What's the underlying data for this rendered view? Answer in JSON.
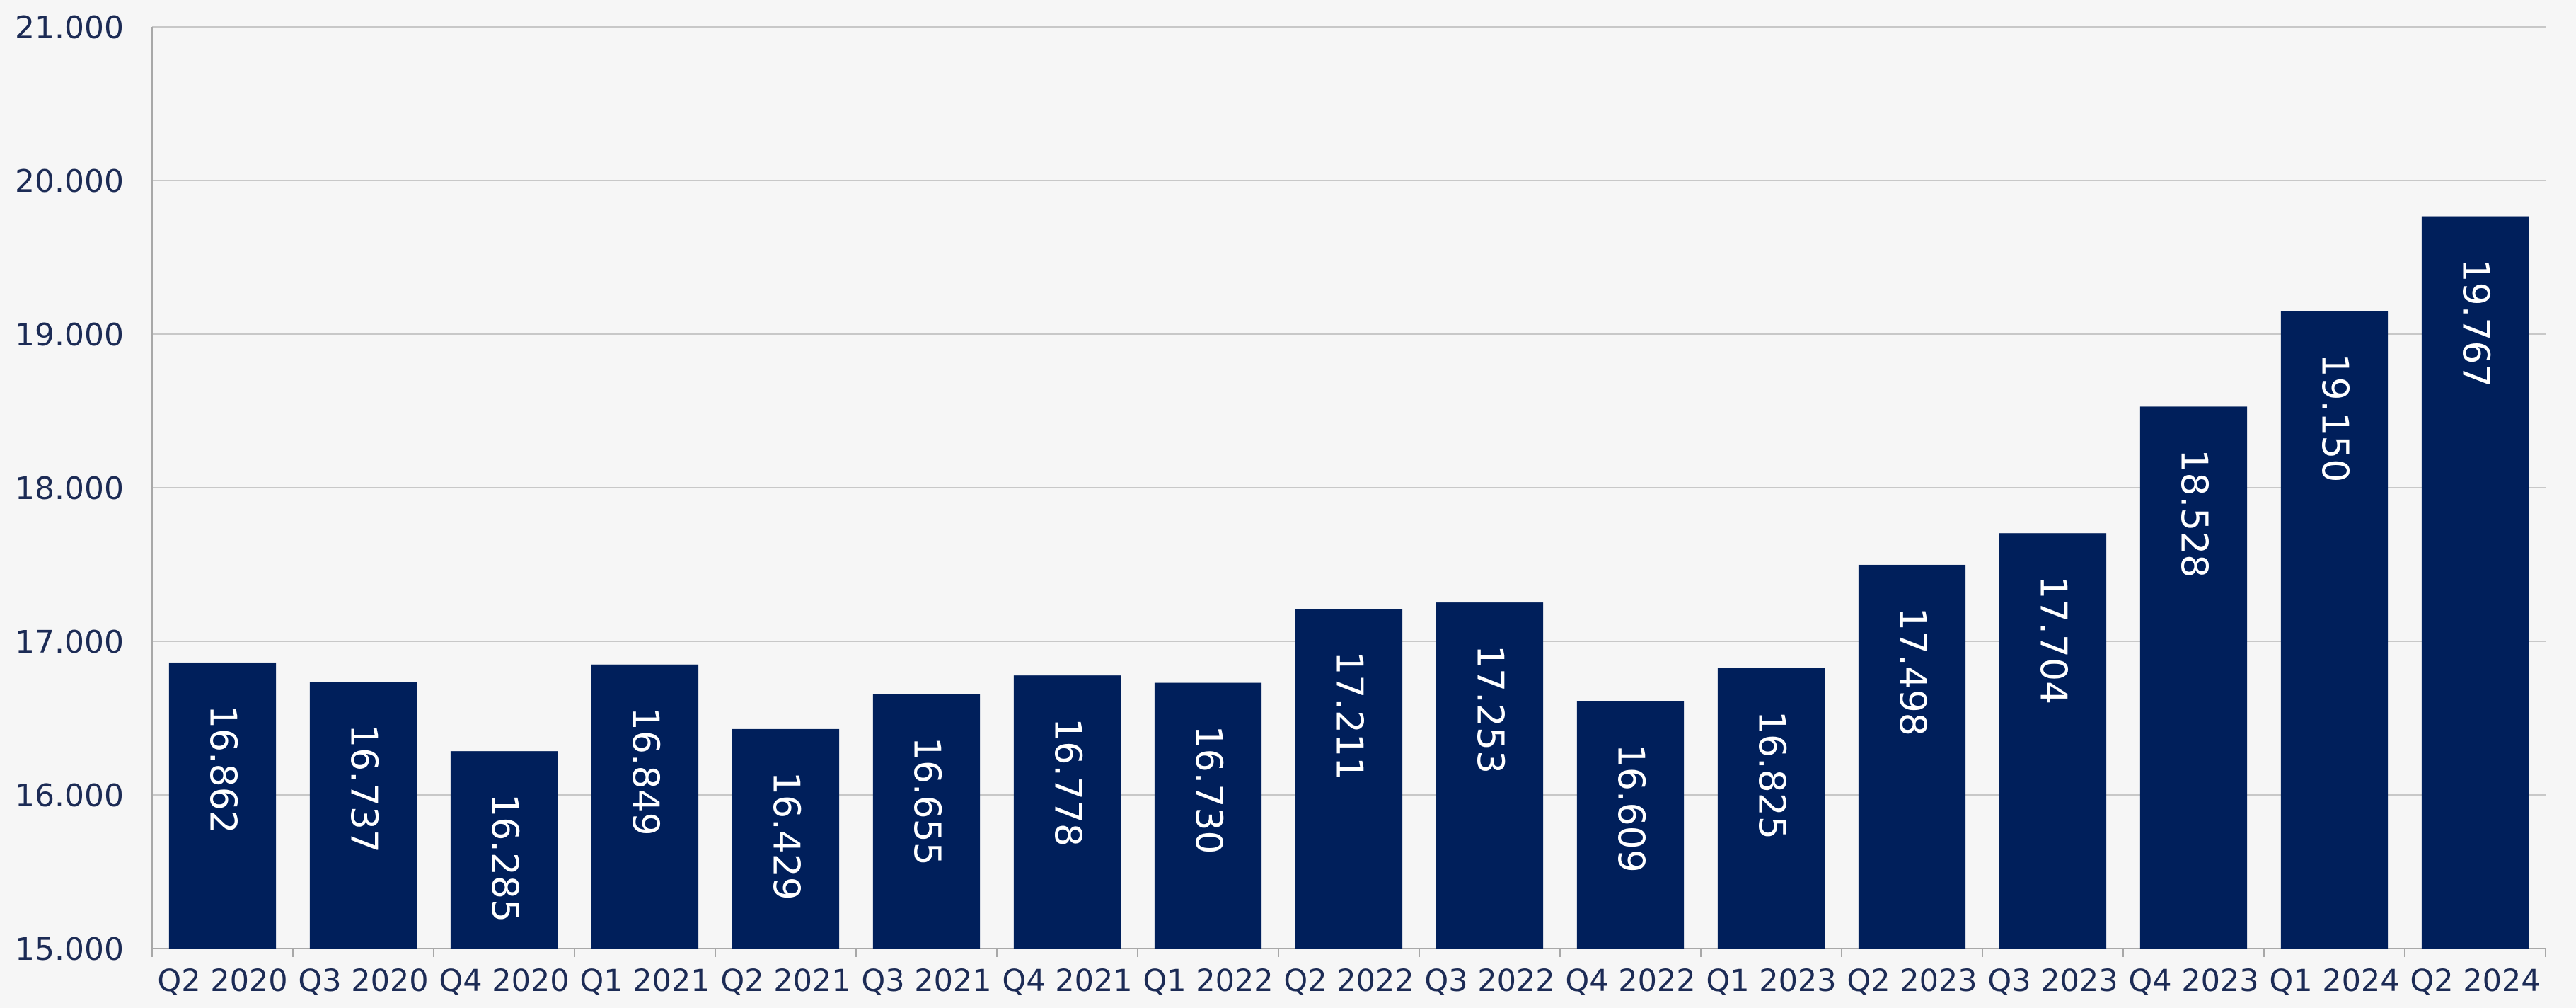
{
  "chart_data": {
    "type": "bar",
    "title": "",
    "xlabel": "",
    "ylabel": "",
    "ylim": [
      15000,
      21000
    ],
    "yticks": [
      15000,
      16000,
      17000,
      18000,
      19000,
      20000,
      21000
    ],
    "ytick_labels": [
      "15.000",
      "16.000",
      "17.000",
      "18.000",
      "19.000",
      "20.000",
      "21.000"
    ],
    "grid": true,
    "legend": "none",
    "categories": [
      "Q2 2020",
      "Q3 2020",
      "Q4 2020",
      "Q1 2021",
      "Q2 2021",
      "Q3 2021",
      "Q4 2021",
      "Q1 2022",
      "Q2 2022",
      "Q3 2022",
      "Q4 2022",
      "Q1 2023",
      "Q2 2023",
      "Q3 2023",
      "Q4 2023",
      "Q1 2024",
      "Q2 2024"
    ],
    "values": [
      16862,
      16737,
      16285,
      16849,
      16429,
      16655,
      16778,
      16730,
      17211,
      17253,
      16609,
      16825,
      17498,
      17704,
      18528,
      19150,
      19767
    ],
    "data_labels": [
      "16.862",
      "16.737",
      "16.285",
      "16.849",
      "16.429",
      "16.655",
      "16.778",
      "16.730",
      "17.211",
      "17.253",
      "16.609",
      "16.825",
      "17.498",
      "17.704",
      "18.528",
      "19.150",
      "19.767"
    ],
    "colors": {
      "bar": "#001f5b",
      "label_inside": "#ffffff",
      "axis_text": "#1c2b55",
      "grid": "#c8c8c8",
      "axis": "#a8a8a8",
      "background": "#f6f6f6"
    }
  }
}
